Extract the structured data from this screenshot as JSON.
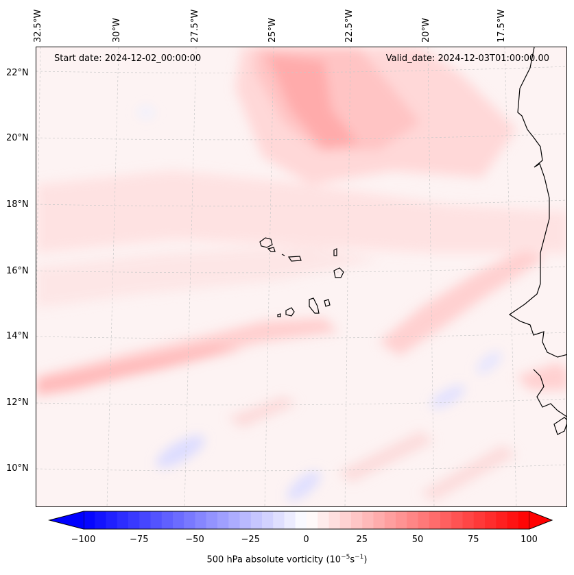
{
  "map": {
    "start_date": "Start date: 2024-12-02_00:00:00",
    "valid_date": "Valid_date: 2024-12-03T01:00:00.00",
    "lon_labels": [
      "32.5°W",
      "30°W",
      "27.5°W",
      "25°W",
      "22.5°W",
      "20°W",
      "17.5°W"
    ],
    "lat_labels": [
      "22°N",
      "20°N",
      "18°N",
      "16°N",
      "14°N",
      "12°N",
      "10°N"
    ],
    "coastline_color": "#000000",
    "gridline_color": "#c8c8c8"
  },
  "colorbar": {
    "ticks": [
      "−100",
      "−75",
      "−50",
      "−25",
      "0",
      "25",
      "50",
      "75",
      "100"
    ],
    "label_text": "500 hPa absolute vorticity (10",
    "label_exp1": "−5",
    "label_mid": "s",
    "label_exp2": "−1",
    "label_end": ")",
    "min_value": -100,
    "max_value": 100,
    "min_color": "#0000ff",
    "mid_color": "#ffffff",
    "max_color": "#ff0000"
  }
}
